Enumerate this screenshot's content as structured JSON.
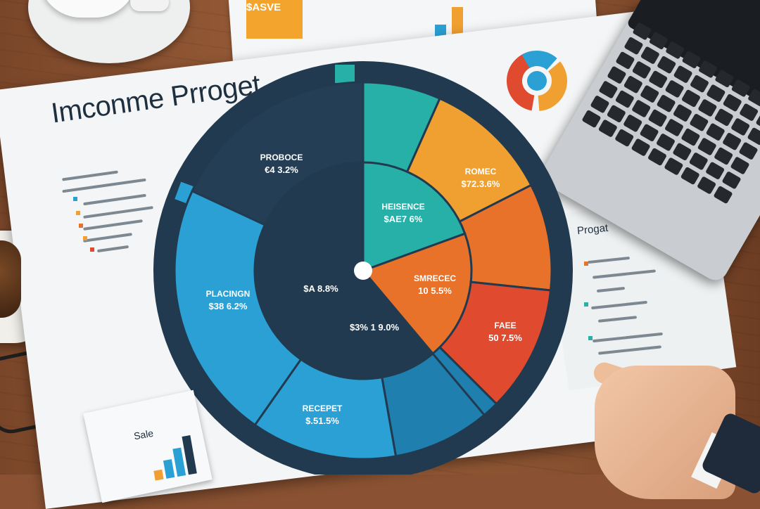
{
  "document": {
    "title": "Imconme Prroget",
    "side_label": "Progat",
    "card_label": "Sale"
  },
  "top_strip": {
    "text": "$ASVE"
  },
  "chart_data": {
    "type": "pie",
    "slices": [
      {
        "label": "PROBOCE",
        "value_text": "€4 3.2%",
        "color": "#243f55"
      },
      {
        "label": "HEISENCE",
        "value_text": "$AE7 6%",
        "color": "#26b0a8"
      },
      {
        "label": "ROMEC",
        "value_text": "$72.3.6%",
        "color": "#f0a030"
      },
      {
        "label": "SMRECEC",
        "value_text": "10 5.5%",
        "color": "#e8722a"
      },
      {
        "label": "FAEE",
        "value_text": "50 7.5%",
        "color": "#e04a2e"
      },
      {
        "label": "RECEPET",
        "value_text": "$.51.5%",
        "color": "#1f9ccd"
      },
      {
        "label": "PLACINGN",
        "value_text": "$38 6.2%",
        "color": "#2aa0d4"
      }
    ],
    "inner_texts": [
      "$A 8.8%",
      "$3% 1 9.0%"
    ]
  },
  "colors": {
    "navy": "#213a4f",
    "teal": "#26b0a8",
    "orange": "#f0a030",
    "red": "#e04a2e",
    "blue": "#2aa0d4"
  }
}
